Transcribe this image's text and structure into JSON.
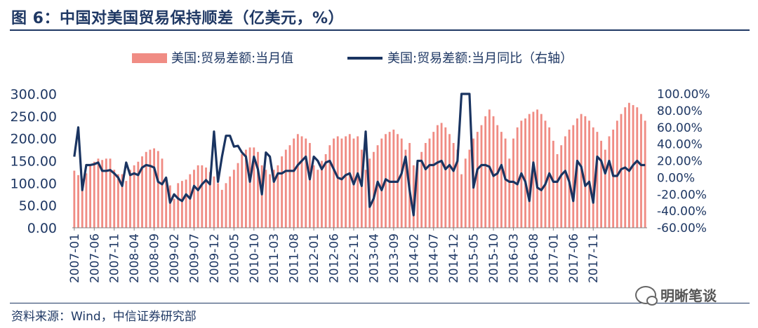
{
  "title": "图 6：中国对美国贸易保持顺差（亿美元，%）",
  "source": "资料来源：Wind，中信证券研究部",
  "watermark": "明晰笔谈",
  "colors": {
    "bar": "#f08c84",
    "line": "#1a3461",
    "axis_text": "#1f3864",
    "title": "#1f3864"
  },
  "chart_data": {
    "type": "bar+line",
    "legend": [
      "美国:贸易差额:当月值",
      "美国:贸易差额:当月同比（右轴）"
    ],
    "legend_position": "top-center",
    "y_left": {
      "min": 0,
      "max": 300,
      "ticks": [
        "0.00",
        "50.00",
        "100.00",
        "150.00",
        "200.00",
        "250.00",
        "300.00"
      ]
    },
    "y_right": {
      "min": -60,
      "max": 100,
      "ticks": [
        "-60.00%",
        "-40.00%",
        "-20.00%",
        "0.00%",
        "20.00%",
        "40.00%",
        "60.00%",
        "80.00%",
        "100.00%"
      ]
    },
    "x_start": "2007-01",
    "x_end": "2017-12",
    "x_tick_labels": [
      "2007-01",
      "2007-06",
      "2007-11",
      "2008-04",
      "2008-09",
      "2009-02",
      "2009-07",
      "2009-12",
      "2010-05",
      "2010-10",
      "2011-03",
      "2011-08",
      "2012-01",
      "2012-06",
      "2012-11",
      "2013-04",
      "2013-09",
      "2014-02",
      "2014-07",
      "2014-12",
      "2015-05",
      "2015-10",
      "2016-03",
      "2016-08",
      "2017-01",
      "2017-06",
      "2017-11"
    ],
    "series": [
      {
        "name": "美国:贸易差额:当月值",
        "type": "bar",
        "axis": "left",
        "values": [
          128,
          118,
          110,
          122,
          140,
          148,
          155,
          152,
          155,
          155,
          130,
          120,
          120,
          105,
          130,
          140,
          148,
          160,
          170,
          175,
          178,
          172,
          155,
          110,
          95,
          65,
          100,
          105,
          108,
          120,
          130,
          140,
          140,
          135,
          125,
          115,
          100,
          85,
          100,
          115,
          130,
          145,
          165,
          175,
          180,
          180,
          170,
          140,
          130,
          120,
          130,
          140,
          160,
          175,
          185,
          200,
          210,
          205,
          200,
          190,
          140,
          130,
          150,
          165,
          185,
          200,
          205,
          200,
          205,
          210,
          200,
          205,
          175,
          130,
          155,
          170,
          185,
          200,
          210,
          215,
          220,
          210,
          200,
          175,
          190,
          140,
          150,
          170,
          190,
          200,
          215,
          230,
          235,
          225,
          210,
          190,
          175,
          120,
          155,
          175,
          200,
          215,
          230,
          250,
          265,
          250,
          230,
          215,
          200,
          155,
          200,
          225,
          240,
          245,
          255,
          260,
          265,
          255,
          240,
          225,
          195,
          165,
          185,
          205,
          220,
          230,
          245,
          255,
          250,
          240,
          225,
          215,
          195,
          175,
          205,
          220,
          240,
          255,
          270,
          280,
          275,
          270,
          255,
          240
        ]
      },
      {
        "name": "美国:贸易差额:当月同比（右轴）",
        "type": "line",
        "axis": "right",
        "values": [
          25,
          60,
          -15,
          15,
          15,
          16,
          18,
          8,
          8,
          9,
          5,
          0,
          -10,
          18,
          3,
          5,
          3,
          12,
          15,
          14,
          12,
          -5,
          -8,
          0,
          -30,
          -20,
          -25,
          -28,
          -20,
          -25,
          -10,
          -15,
          -8,
          -3,
          -8,
          55,
          -5,
          25,
          50,
          50,
          37,
          38,
          30,
          25,
          -5,
          25,
          10,
          -20,
          30,
          25,
          -5,
          5,
          5,
          8,
          8,
          8,
          15,
          20,
          25,
          -2,
          25,
          20,
          10,
          18,
          20,
          10,
          0,
          -2,
          3,
          5,
          -8,
          5,
          -10,
          55,
          -35,
          -25,
          -5,
          -15,
          -2,
          -5,
          -5,
          -5,
          5,
          25,
          -15,
          -45,
          20,
          20,
          10,
          15,
          15,
          18,
          20,
          10,
          15,
          8,
          20,
          100,
          100,
          100,
          -12,
          10,
          15,
          15,
          13,
          2,
          5,
          15,
          -2,
          -5,
          -5,
          -8,
          5,
          -5,
          -28,
          18,
          -12,
          -15,
          -8,
          5,
          -5,
          -5,
          3,
          8,
          -5,
          -28,
          20,
          13,
          -10,
          -5,
          -30,
          25,
          20,
          5,
          20,
          2,
          2,
          10,
          12,
          8,
          15,
          20,
          15,
          15
        ]
      }
    ]
  }
}
